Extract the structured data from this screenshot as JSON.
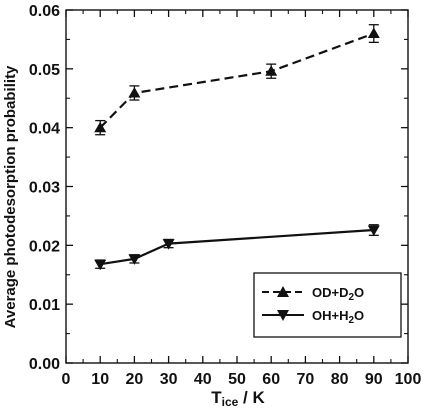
{
  "chart_data": {
    "type": "line",
    "xlabel_main": "T",
    "xlabel_sub": "ice",
    "xlabel_rest": " / K",
    "ylabel": "Average photodesorption probability",
    "xlim": [
      0,
      100
    ],
    "ylim": [
      0.0,
      0.06
    ],
    "x_ticks": [
      "0",
      "10",
      "20",
      "30",
      "40",
      "50",
      "60",
      "70",
      "80",
      "90",
      "100"
    ],
    "y_ticks": [
      "0.00",
      "0.01",
      "0.02",
      "0.03",
      "0.04",
      "0.05",
      "0.06"
    ],
    "grid": false,
    "legend_position": "lower-right",
    "series": [
      {
        "legend_parts": [
          "OD+D",
          "2",
          "O"
        ],
        "marker": "triangle-up",
        "line_style": "dashed",
        "x": [
          10,
          20,
          60,
          90
        ],
        "y": [
          0.04,
          0.0459,
          0.0496,
          0.056
        ],
        "err": [
          0.0012,
          0.0012,
          0.0012,
          0.0015
        ]
      },
      {
        "legend_parts": [
          "OH+H",
          "2",
          "O"
        ],
        "marker": "triangle-down",
        "line_style": "solid",
        "x": [
          10,
          20,
          30,
          90
        ],
        "y": [
          0.0168,
          0.0177,
          0.0203,
          0.0226
        ],
        "err": [
          0.0007,
          0.0007,
          0.0007,
          0.0009
        ]
      }
    ]
  }
}
